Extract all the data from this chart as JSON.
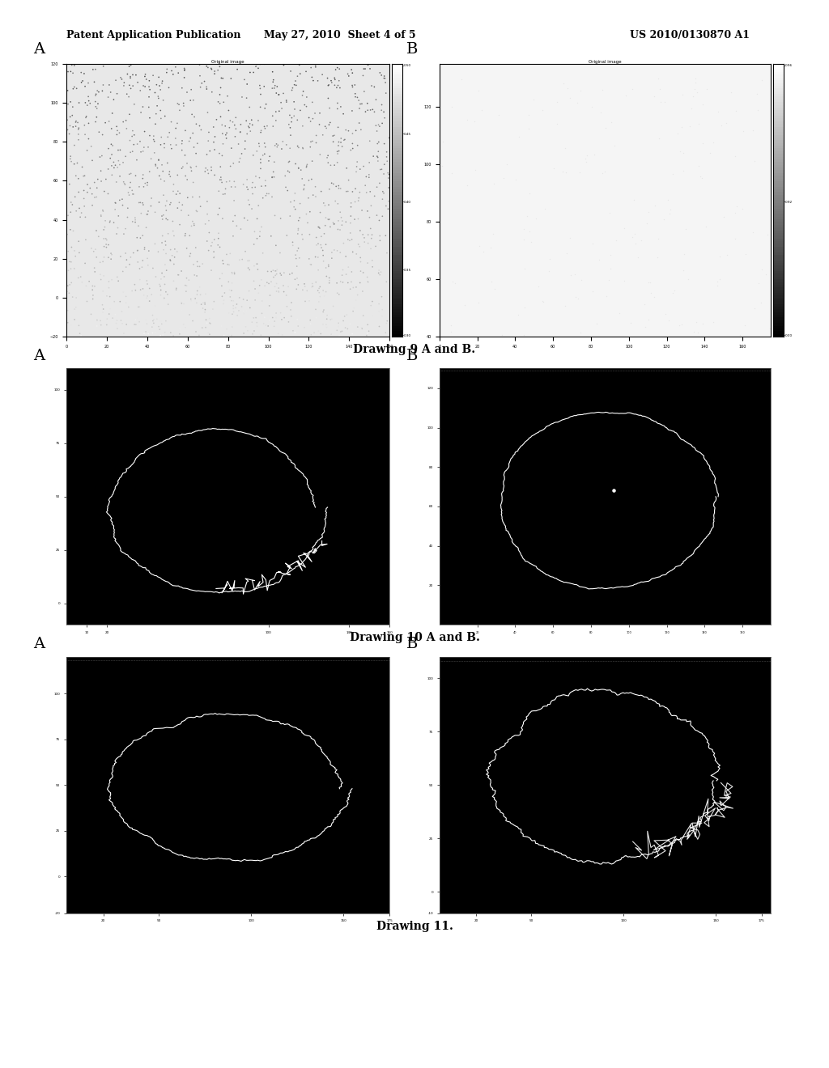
{
  "page_title_left": "Patent Application Publication",
  "page_title_mid": "May 27, 2010  Sheet 4 of 5",
  "page_title_right": "US 2010/0130870 A1",
  "background_color": "#ffffff",
  "caption_9": "Drawing 9 A and B.",
  "caption_10": "Drawing 10 A and B.",
  "caption_11": "Drawing 11.",
  "label_A": "A",
  "label_B": "B",
  "scatter_title_A": "Original image",
  "scatter_title_B": "Original image",
  "panel_bg": "#000000",
  "contour_color": "#ffffff"
}
